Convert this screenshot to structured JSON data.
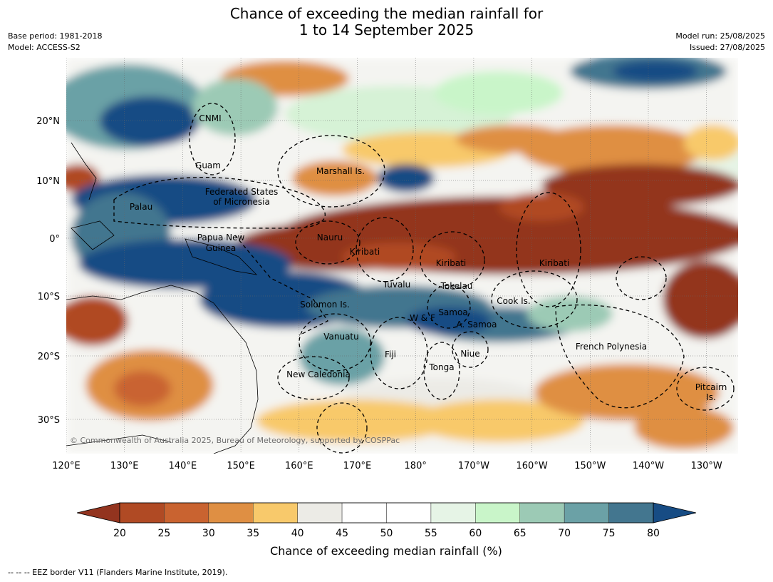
{
  "title": {
    "line1": "Chance of exceeding the median rainfall for",
    "line2": "1 to 14 September 2025"
  },
  "meta_left": {
    "base_period": "Base period: 1981-2018",
    "model": "Model: ACCESS-S2"
  },
  "meta_right": {
    "model_run": "Model run: 25/08/2025",
    "issued": "Issued: 27/08/2025"
  },
  "copyright": "© Commonwealth of Australia 2025, Bureau of Meteorology, supported by COSPPac",
  "footer": "--  --  -- EEZ border V11 (Flanders Marine Institute, 2019).",
  "axes": {
    "lon_ticks": [
      "120°E",
      "130°E",
      "140°E",
      "150°E",
      "160°E",
      "170°E",
      "180°",
      "170°W",
      "160°W",
      "150°W",
      "140°W",
      "130°W"
    ],
    "lat_ticks": [
      "20°N",
      "10°N",
      "0°",
      "10°S",
      "20°S",
      "30°S"
    ]
  },
  "colorbar": {
    "label": "Chance of exceeding median rainfall (%)",
    "ticks": [
      "20",
      "25",
      "30",
      "35",
      "40",
      "45",
      "50",
      "55",
      "60",
      "65",
      "70",
      "75",
      "80"
    ],
    "colors": [
      "#93341f",
      "#b04a24",
      "#c96330",
      "#df8f43",
      "#f8c96b",
      "#ecebe6",
      "#ffffff",
      "#ffffff",
      "#e6f4e6",
      "#c9f5c9",
      "#9ccab5",
      "#6ba1a6",
      "#43768f",
      "#174c84"
    ]
  },
  "regions": [
    {
      "name": "CNMI"
    },
    {
      "name": "Guam"
    },
    {
      "name": "Marshall Is."
    },
    {
      "name": "Federated States"
    },
    {
      "name": "of Micronesia"
    },
    {
      "name": "Palau"
    },
    {
      "name": "Papua New"
    },
    {
      "name": "Guinea"
    },
    {
      "name": "Nauru"
    },
    {
      "name": "Kiribati"
    },
    {
      "name": "Kiribati"
    },
    {
      "name": "Kiribati"
    },
    {
      "name": "Tuvalu"
    },
    {
      "name": "Tokelau"
    },
    {
      "name": "Cook Is."
    },
    {
      "name": "Solomon Is."
    },
    {
      "name": "Samoa"
    },
    {
      "name": "W & F"
    },
    {
      "name": "A. Samoa"
    },
    {
      "name": "Vanuatu"
    },
    {
      "name": "French Polynesia"
    },
    {
      "name": "Fiji"
    },
    {
      "name": "Niue"
    },
    {
      "name": "Tonga"
    },
    {
      "name": "New Caledonia"
    },
    {
      "name": "Pitcairn"
    },
    {
      "name": "Is."
    }
  ]
}
